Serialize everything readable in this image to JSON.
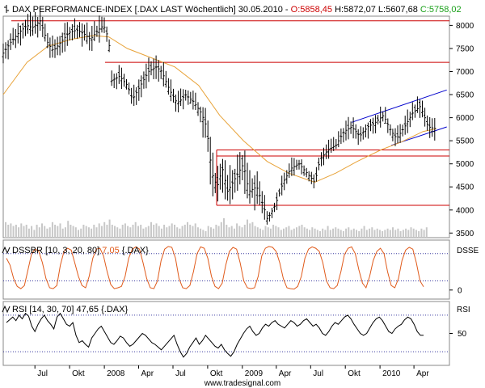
{
  "chart_data": [
    {
      "type": "candlestick",
      "title": {
        "icon": "ohlc-bar-icon",
        "name": "DAX PERFORMANCE-INDEX",
        "source": "[.DAX LAST Wöchentlich]",
        "date": "30.05.2010",
        "open_label": "O:5858,45",
        "high_label": "H:5872,07",
        "low_label": "L:5607,68",
        "close_label": "C:5758,02"
      },
      "colors": {
        "price": "#000000",
        "sma": "#e8a33a",
        "support_resistance": "#cc0000",
        "trend_channel": "#0000cc",
        "open": "#cc0000",
        "close": "#1aa01a"
      },
      "y_ticks": [
        "3500",
        "4000",
        "4500",
        "5000",
        "5500",
        "6000",
        "6500",
        "7000",
        "7500",
        "8000"
      ],
      "ylim": [
        3400,
        8200
      ],
      "grid": false,
      "x_ticks": [
        {
          "label": "Jul",
          "date": "2007-07-01"
        },
        {
          "label": "Okt",
          "date": "2007-10-01"
        },
        {
          "label": "2008",
          "date": "2008-01-01"
        },
        {
          "label": "Apr",
          "date": "2008-04-01"
        },
        {
          "label": "Jul",
          "date": "2008-07-01"
        },
        {
          "label": "Okt",
          "date": "2008-10-01"
        },
        {
          "label": "2009",
          "date": "2009-01-01"
        },
        {
          "label": "Apr",
          "date": "2009-04-01"
        },
        {
          "label": "Jul",
          "date": "2009-07-01"
        },
        {
          "label": "Okt",
          "date": "2009-10-01"
        },
        {
          "label": "2010",
          "date": "2010-01-01"
        },
        {
          "label": "Apr",
          "date": "2010-04-01"
        }
      ],
      "x_range": [
        "2007-04-08",
        "2010-07-04"
      ],
      "price_path": [
        [
          "2007-04-08",
          7400
        ],
        [
          "2007-04-29",
          7650
        ],
        [
          "2007-05-20",
          7850
        ],
        [
          "2007-06-10",
          8000
        ],
        [
          "2007-06-24",
          7950
        ],
        [
          "2007-07-15",
          8100
        ],
        [
          "2007-08-05",
          7600
        ],
        [
          "2007-08-19",
          7450
        ],
        [
          "2007-09-09",
          7650
        ],
        [
          "2007-09-30",
          7850
        ],
        [
          "2007-10-21",
          7900
        ],
        [
          "2007-11-11",
          7800
        ],
        [
          "2007-11-25",
          7700
        ],
        [
          "2007-12-16",
          7900
        ],
        [
          "2007-12-30",
          8000
        ],
        [
          "2008-01-13",
          7700
        ],
        [
          "2008-01-20",
          6800
        ],
        [
          "2008-02-10",
          6900
        ],
        [
          "2008-03-02",
          6700
        ],
        [
          "2008-03-16",
          6400
        ],
        [
          "2008-04-06",
          6700
        ],
        [
          "2008-04-27",
          7000
        ],
        [
          "2008-05-18",
          7100
        ],
        [
          "2008-06-01",
          7000
        ],
        [
          "2008-06-22",
          6600
        ],
        [
          "2008-07-13",
          6300
        ],
        [
          "2008-08-03",
          6500
        ],
        [
          "2008-08-24",
          6350
        ],
        [
          "2008-09-14",
          6100
        ],
        [
          "2008-09-28",
          5800
        ],
        [
          "2008-10-12",
          4800
        ],
        [
          "2008-10-26",
          4500
        ],
        [
          "2008-11-09",
          4900
        ],
        [
          "2008-11-23",
          4400
        ],
        [
          "2008-12-14",
          4700
        ],
        [
          "2009-01-04",
          5000
        ],
        [
          "2009-01-18",
          4400
        ],
        [
          "2009-02-08",
          4500
        ],
        [
          "2009-03-01",
          4000
        ],
        [
          "2009-03-08",
          3800
        ],
        [
          "2009-03-29",
          4100
        ],
        [
          "2009-04-19",
          4600
        ],
        [
          "2009-05-10",
          4900
        ],
        [
          "2009-05-31",
          5000
        ],
        [
          "2009-06-21",
          4800
        ],
        [
          "2009-07-12",
          4600
        ],
        [
          "2009-07-26",
          5100
        ],
        [
          "2009-08-16",
          5300
        ],
        [
          "2009-09-06",
          5400
        ],
        [
          "2009-09-27",
          5700
        ],
        [
          "2009-10-18",
          5800
        ],
        [
          "2009-11-08",
          5600
        ],
        [
          "2009-11-29",
          5800
        ],
        [
          "2009-12-20",
          5900
        ],
        [
          "2010-01-10",
          6050
        ],
        [
          "2010-01-31",
          5700
        ],
        [
          "2010-02-14",
          5550
        ],
        [
          "2010-03-07",
          5800
        ],
        [
          "2010-03-28",
          6100
        ],
        [
          "2010-04-18",
          6250
        ],
        [
          "2010-05-09",
          5800
        ],
        [
          "2010-05-30",
          5758
        ]
      ],
      "sma_path": [
        [
          "2007-04-08",
          6500
        ],
        [
          "2007-06-10",
          7200
        ],
        [
          "2007-08-05",
          7550
        ],
        [
          "2007-10-07",
          7700
        ],
        [
          "2007-12-02",
          7780
        ],
        [
          "2008-01-13",
          7750
        ],
        [
          "2008-03-02",
          7500
        ],
        [
          "2008-05-04",
          7300
        ],
        [
          "2008-07-06",
          7100
        ],
        [
          "2008-09-07",
          6700
        ],
        [
          "2008-11-02",
          6050
        ],
        [
          "2009-01-04",
          5500
        ],
        [
          "2009-03-08",
          5050
        ],
        [
          "2009-05-03",
          4800
        ],
        [
          "2009-07-12",
          4600
        ],
        [
          "2009-09-06",
          4800
        ],
        [
          "2009-11-01",
          5050
        ],
        [
          "2010-01-03",
          5300
        ],
        [
          "2010-02-28",
          5480
        ],
        [
          "2010-04-25",
          5700
        ],
        [
          "2010-05-30",
          5760
        ]
      ],
      "horizontal_levels": [
        8100,
        7200,
        5300,
        5170,
        4100
      ],
      "trend_channel": [
        {
          "from": [
            "2009-10-18",
            5900
          ],
          "to": [
            "2010-06-27",
            6600
          ]
        },
        {
          "from": [
            "2010-01-31",
            5400
          ],
          "to": [
            "2010-06-27",
            5800
          ]
        }
      ],
      "volume_levels": [
        0.6,
        0.5,
        0.55,
        0.45,
        0.5,
        0.4,
        0.55,
        0.45,
        0.5,
        0.35,
        0.45,
        0.3,
        0.5,
        0.4,
        0.55,
        0.45,
        0.35,
        0.4,
        0.6,
        0.5,
        0.45,
        0.55,
        0.35,
        0.4,
        0.65,
        0.5,
        0.45,
        0.4,
        0.3,
        0.35,
        0.5,
        0.45,
        0.4,
        0.35,
        0.5,
        0.4,
        0.55,
        0.45,
        0.6,
        0.5,
        0.7,
        0.5,
        0.45,
        0.4,
        0.35,
        0.5,
        0.55,
        0.45,
        0.4,
        0.5,
        0.6,
        0.45,
        0.5,
        0.35,
        0.4,
        0.45,
        0.6,
        0.5,
        0.55,
        0.45,
        0.35,
        0.5,
        0.4,
        0.45,
        0.55,
        0.5,
        0.4,
        0.35,
        0.45,
        0.5,
        0.6,
        0.5,
        0.45,
        0.55,
        0.4,
        0.35,
        0.3,
        0.25,
        0.45,
        0.4,
        0.35,
        0.5,
        0.45,
        0.6,
        0.75,
        0.5,
        0.4,
        0.45,
        0.35,
        0.55,
        0.45,
        0.4,
        0.5,
        0.7,
        0.55,
        0.6,
        0.45,
        0.4,
        0.35,
        0.3,
        0.45,
        0.4,
        0.35,
        0.5,
        0.45,
        0.4,
        0.3,
        0.35,
        0.4,
        0.45,
        0.3,
        0.35,
        0.4,
        0.45,
        0.5,
        0.4,
        0.35,
        0.3,
        0.4,
        0.35,
        0.3,
        0.25,
        0.35,
        0.3,
        0.45,
        0.3,
        0.35,
        0.4,
        0.35,
        0.3,
        0.25,
        0.35,
        0.4,
        0.3,
        0.35,
        0.3,
        0.25,
        0.35,
        0.45,
        0.3,
        0.35,
        0.4,
        0.3,
        0.35,
        0.3,
        0.25,
        0.3,
        0.35,
        0.3,
        0.4,
        0.3,
        0.35,
        0.25,
        0.3,
        0.35,
        0.3,
        0.4,
        0.35,
        0.3,
        0.25,
        0.35,
        0.3,
        0.4
      ]
    },
    {
      "type": "line",
      "title": {
        "name": "DSSBR [10, 3, 20, 80]",
        "value": "7,05",
        "source": "{.DAX}"
      },
      "label_right": "DSSE",
      "y_ticks": [
        "0"
      ],
      "ylim": [
        -20,
        110
      ],
      "grid": false,
      "reference_levels": [
        20,
        80
      ],
      "color": "#e05a1a",
      "values": [
        70,
        55,
        25,
        8,
        3,
        10,
        45,
        80,
        90,
        85,
        60,
        25,
        5,
        3,
        10,
        55,
        85,
        92,
        88,
        60,
        30,
        10,
        5,
        30,
        70,
        90,
        92,
        75,
        40,
        12,
        3,
        5,
        8,
        30,
        70,
        90,
        95,
        90,
        60,
        25,
        5,
        3,
        20,
        65,
        90,
        96,
        94,
        70,
        25,
        5,
        3,
        10,
        40,
        80,
        95,
        92,
        70,
        30,
        8,
        3,
        15,
        55,
        85,
        94,
        90,
        60,
        20,
        5,
        3,
        5,
        30,
        75,
        92,
        96,
        94,
        85,
        60,
        25,
        5,
        3,
        2,
        8,
        30,
        70,
        90,
        95,
        92,
        85,
        60,
        20,
        5,
        3,
        10,
        40,
        78,
        92,
        95,
        80,
        45,
        15,
        5,
        30,
        65,
        85,
        92,
        80,
        40,
        10,
        5,
        25,
        65,
        88,
        94,
        90,
        60,
        20,
        7
      ]
    },
    {
      "type": "line",
      "title": {
        "name": "RSI [14, 30, 70]",
        "value": "47,65",
        "source": "{.DAX}"
      },
      "label_right": "RSI",
      "y_ticks": [
        "50"
      ],
      "ylim": [
        15,
        85
      ],
      "grid": false,
      "reference_levels": [
        30,
        70
      ],
      "color": "#000000",
      "values": [
        62,
        65,
        68,
        64,
        70,
        66,
        72,
        69,
        58,
        52,
        60,
        66,
        70,
        64,
        60,
        55,
        68,
        72,
        66,
        60,
        58,
        62,
        48,
        40,
        42,
        38,
        35,
        45,
        50,
        55,
        58,
        52,
        46,
        40,
        38,
        42,
        47,
        45,
        40,
        36,
        38,
        42,
        46,
        50,
        48,
        44,
        40,
        38,
        35,
        32,
        36,
        40,
        44,
        48,
        38,
        30,
        24,
        28,
        35,
        40,
        45,
        38,
        42,
        48,
        44,
        40,
        36,
        34,
        38,
        32,
        28,
        25,
        30,
        38,
        44,
        50,
        55,
        58,
        52,
        48,
        50,
        56,
        60,
        58,
        62,
        64,
        60,
        58,
        56,
        60,
        64,
        62,
        58,
        60,
        64,
        66,
        62,
        58,
        60,
        56,
        50,
        48,
        52,
        58,
        62,
        60,
        64,
        68,
        70,
        66,
        60,
        55,
        50,
        48,
        50,
        56,
        62,
        66,
        68,
        64,
        58,
        52,
        50,
        55,
        58,
        60,
        65,
        68,
        66,
        60,
        52,
        48,
        48
      ]
    }
  ],
  "footer": {
    "watermark": "www.tradesignal.com"
  }
}
